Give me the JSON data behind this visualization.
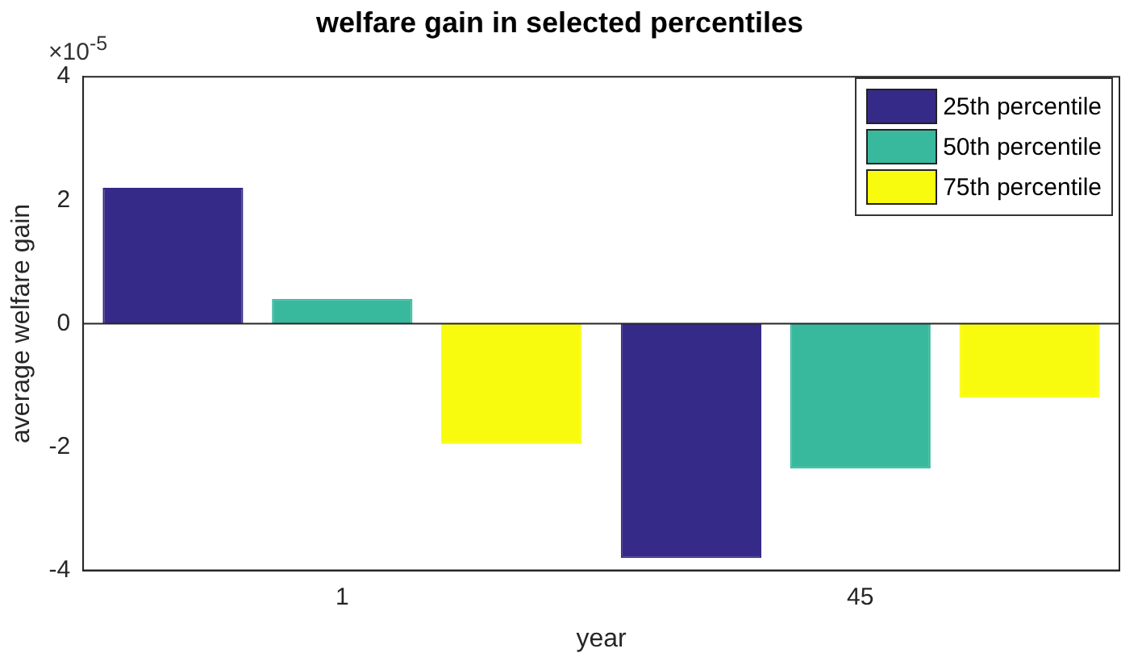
{
  "chart_data": {
    "type": "bar",
    "title": "welfare gain in selected percentiles",
    "xlabel": "year",
    "ylabel": "average welfare gain",
    "categories": [
      "1",
      "45"
    ],
    "series": [
      {
        "name": "25th percentile",
        "color": "#352a87",
        "values": [
          2.2,
          -3.8
        ]
      },
      {
        "name": "50th percentile",
        "color": "#38b99e",
        "values": [
          0.4,
          -2.35
        ]
      },
      {
        "name": "75th percentile",
        "color": "#f9fb0e",
        "values": [
          -1.95,
          -1.2
        ]
      }
    ],
    "ylim": [
      -4,
      4
    ],
    "yticks": [
      -4,
      -2,
      0,
      2,
      4
    ],
    "grid": false,
    "ref_lines": [
      {
        "axis": "y",
        "value": 0,
        "color": "#262626"
      }
    ],
    "legend": "top right",
    "annotations": [
      "×10$^{-5}$"
    ]
  }
}
